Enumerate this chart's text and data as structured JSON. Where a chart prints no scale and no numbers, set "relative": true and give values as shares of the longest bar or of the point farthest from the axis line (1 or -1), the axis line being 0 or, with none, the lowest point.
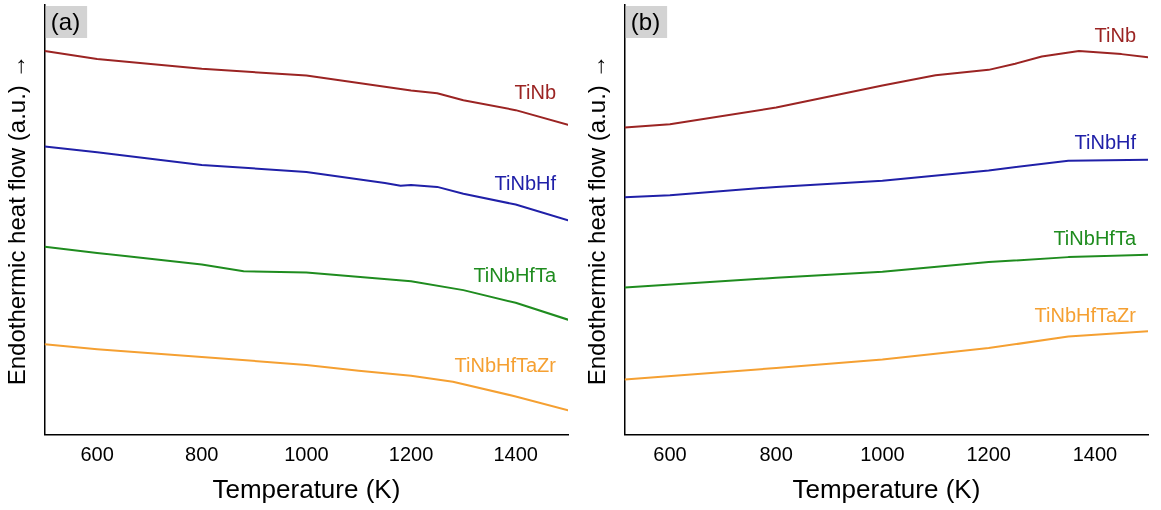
{
  "chart_data": [
    {
      "type": "line",
      "title": "(a)",
      "xlabel": "Temperature (K)",
      "ylabel": "Endothermic heat flow (a.u.) →",
      "relative": true,
      "xlim": [
        500,
        1500
      ],
      "xticks": [
        600,
        800,
        1000,
        1200,
        1400
      ],
      "legend": false,
      "grid": false,
      "marker": "none",
      "line_style": "solid",
      "series": [
        {
          "name": "TiNb",
          "color": "#9b2423",
          "x": [
            500,
            600,
            800,
            1000,
            1200,
            1250,
            1300,
            1400,
            1500
          ],
          "values": [
            1,
            0.979,
            0.954,
            0.936,
            0.897,
            0.89,
            0.872,
            0.846,
            0.808
          ]
        },
        {
          "name": "TiNbHf",
          "color": "#2020a8",
          "x": [
            500,
            600,
            800,
            1000,
            1150,
            1180,
            1200,
            1250,
            1300,
            1400,
            1500
          ],
          "values": [
            0.751,
            0.736,
            0.703,
            0.685,
            0.656,
            0.649,
            0.651,
            0.646,
            0.628,
            0.6,
            0.559
          ]
        },
        {
          "name": "TiNbHfTa",
          "color": "#1f8c1f",
          "x": [
            500,
            600,
            800,
            880,
            1000,
            1200,
            1300,
            1400,
            1500
          ],
          "values": [
            0.49,
            0.474,
            0.444,
            0.426,
            0.423,
            0.4,
            0.377,
            0.344,
            0.3
          ]
        },
        {
          "name": "TiNbHfTaZr",
          "color": "#f5a032",
          "x": [
            500,
            600,
            800,
            1000,
            1100,
            1200,
            1280,
            1400,
            1500
          ],
          "values": [
            0.236,
            0.223,
            0.203,
            0.182,
            0.167,
            0.154,
            0.138,
            0.1,
            0.064
          ]
        }
      ]
    },
    {
      "type": "line",
      "title": "(b)",
      "xlabel": "Temperature (K)",
      "ylabel": "Endothermic heat flow (a.u.) →",
      "relative": true,
      "xlim": [
        515,
        1500
      ],
      "xticks": [
        600,
        800,
        1000,
        1200,
        1400
      ],
      "legend": false,
      "grid": false,
      "marker": "none",
      "line_style": "solid",
      "series": [
        {
          "name": "TiNb",
          "color": "#9b2423",
          "x": [
            515,
            600,
            800,
            1000,
            1100,
            1200,
            1250,
            1300,
            1370,
            1450,
            1500
          ],
          "values": [
            0.801,
            0.809,
            0.853,
            0.91,
            0.937,
            0.951,
            0.967,
            0.986,
            1,
            0.992,
            0.984
          ]
        },
        {
          "name": "TiNbHf",
          "color": "#2020a8",
          "x": [
            515,
            600,
            800,
            1000,
            1200,
            1350,
            1500
          ],
          "values": [
            0.619,
            0.624,
            0.646,
            0.662,
            0.689,
            0.714,
            0.717
          ]
        },
        {
          "name": "TiNbHfTa",
          "color": "#1f8c1f",
          "x": [
            515,
            800,
            1000,
            1200,
            1350,
            1500
          ],
          "values": [
            0.384,
            0.409,
            0.425,
            0.45,
            0.463,
            0.469
          ]
        },
        {
          "name": "TiNbHfTaZr",
          "color": "#f5a032",
          "x": [
            515,
            800,
            1000,
            1200,
            1350,
            1500
          ],
          "values": [
            0.144,
            0.174,
            0.196,
            0.226,
            0.256,
            0.27
          ]
        }
      ]
    }
  ]
}
